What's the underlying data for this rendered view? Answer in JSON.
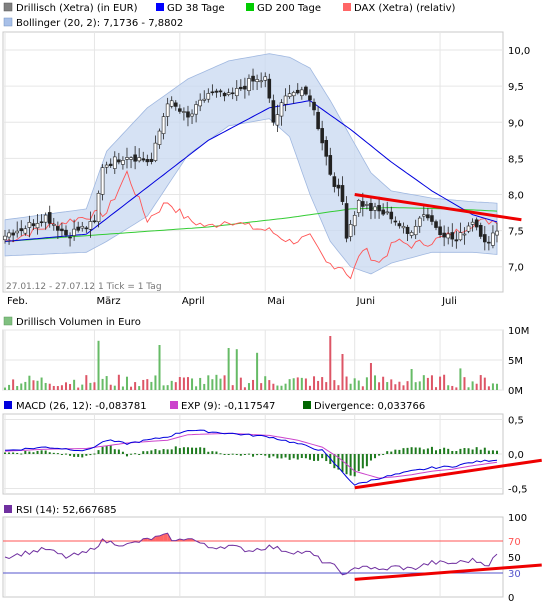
{
  "chart_data": [
    {
      "type": "candlestick",
      "legend": [
        {
          "label": "Drillisch (Xetra) (in EUR)",
          "color": "#808080"
        },
        {
          "label": "GD 38 Tage",
          "color": "#0000ff"
        },
        {
          "label": "GD 200 Tage",
          "color": "#00cc00"
        },
        {
          "label": "DAX (Xetra) (relativ)",
          "color": "#ff6666"
        },
        {
          "label": "Bollinger (20, 2): 7,1736 - 7,8802",
          "color": "#a8c0e8"
        }
      ],
      "y_ticks": [
        "10,0",
        "9,5",
        "9,0",
        "8,5",
        "8,0",
        "7,5",
        "7,0"
      ],
      "y_tick_values": [
        10.0,
        9.5,
        9.0,
        8.5,
        8.0,
        7.5,
        7.0
      ],
      "ylim": [
        6.65,
        10.25
      ],
      "x_ticks": [
        "Feb.",
        "März",
        "April",
        "Mai",
        "Juni",
        "Juli"
      ],
      "period_note": "27.01.12 - 27.07.12   1 Tick = 1 Tag",
      "price_anchors": [
        [
          0,
          7.45
        ],
        [
          5,
          7.55
        ],
        [
          10,
          7.7
        ],
        [
          15,
          7.45
        ],
        [
          20,
          7.55
        ],
        [
          22,
          7.6
        ],
        [
          24,
          8.4
        ],
        [
          30,
          8.55
        ],
        [
          36,
          8.45
        ],
        [
          40,
          9.3
        ],
        [
          45,
          9.05
        ],
        [
          50,
          9.4
        ],
        [
          55,
          9.35
        ],
        [
          60,
          9.55
        ],
        [
          64,
          9.6
        ],
        [
          66,
          9.0
        ],
        [
          70,
          9.45
        ],
        [
          75,
          9.35
        ],
        [
          78,
          8.75
        ],
        [
          80,
          8.3
        ],
        [
          83,
          7.9
        ],
        [
          84,
          7.45
        ],
        [
          87,
          7.9
        ],
        [
          90,
          7.8
        ],
        [
          95,
          7.7
        ],
        [
          99,
          7.45
        ],
        [
          103,
          7.75
        ],
        [
          107,
          7.5
        ],
        [
          111,
          7.35
        ],
        [
          115,
          7.65
        ],
        [
          119,
          7.3
        ],
        [
          121,
          7.55
        ]
      ],
      "gd38_anchors": [
        [
          0,
          7.35
        ],
        [
          20,
          7.45
        ],
        [
          35,
          8.1
        ],
        [
          50,
          8.75
        ],
        [
          65,
          9.2
        ],
        [
          75,
          9.3
        ],
        [
          85,
          8.9
        ],
        [
          95,
          8.45
        ],
        [
          105,
          8.05
        ],
        [
          115,
          7.72
        ],
        [
          121,
          7.62
        ]
      ],
      "gd200_anchors": [
        [
          0,
          7.35
        ],
        [
          25,
          7.45
        ],
        [
          50,
          7.55
        ],
        [
          70,
          7.68
        ],
        [
          85,
          7.8
        ],
        [
          95,
          7.82
        ],
        [
          110,
          7.8
        ],
        [
          121,
          7.77
        ]
      ],
      "dax_anchors": [
        [
          0,
          7.35
        ],
        [
          10,
          7.55
        ],
        [
          20,
          7.7
        ],
        [
          25,
          7.75
        ],
        [
          30,
          8.3
        ],
        [
          35,
          7.65
        ],
        [
          40,
          7.9
        ],
        [
          45,
          7.65
        ],
        [
          50,
          7.55
        ],
        [
          55,
          7.65
        ],
        [
          60,
          7.55
        ],
        [
          65,
          7.5
        ],
        [
          70,
          7.35
        ],
        [
          75,
          7.4
        ],
        [
          79,
          7.05
        ],
        [
          83,
          7.0
        ],
        [
          85,
          6.85
        ],
        [
          88,
          7.25
        ],
        [
          92,
          7.05
        ],
        [
          96,
          7.35
        ],
        [
          100,
          7.3
        ],
        [
          105,
          7.35
        ],
        [
          110,
          7.45
        ],
        [
          115,
          7.6
        ],
        [
          121,
          7.65
        ]
      ],
      "boll_upper_anchors": [
        [
          0,
          7.65
        ],
        [
          20,
          7.8
        ],
        [
          25,
          8.6
        ],
        [
          35,
          9.2
        ],
        [
          45,
          9.6
        ],
        [
          55,
          9.85
        ],
        [
          65,
          9.95
        ],
        [
          70,
          9.9
        ],
        [
          75,
          9.75
        ],
        [
          80,
          9.3
        ],
        [
          85,
          8.8
        ],
        [
          90,
          8.3
        ],
        [
          95,
          8.05
        ],
        [
          105,
          7.95
        ],
        [
          115,
          7.9
        ],
        [
          121,
          7.88
        ]
      ],
      "boll_lower_anchors": [
        [
          0,
          7.15
        ],
        [
          20,
          7.2
        ],
        [
          25,
          7.35
        ],
        [
          35,
          7.7
        ],
        [
          45,
          8.55
        ],
        [
          55,
          8.95
        ],
        [
          65,
          9.05
        ],
        [
          70,
          8.8
        ],
        [
          75,
          8.0
        ],
        [
          80,
          7.35
        ],
        [
          85,
          7.0
        ],
        [
          90,
          6.9
        ],
        [
          95,
          7.05
        ],
        [
          105,
          7.2
        ],
        [
          115,
          7.2
        ],
        [
          121,
          7.17
        ]
      ],
      "trendline": {
        "from": [
          86,
          8.0
        ],
        "to": [
          127,
          7.65
        ],
        "color": "#ff0000"
      }
    },
    {
      "type": "bar",
      "legend": [
        {
          "label": "Drillisch Volumen in Euro",
          "color": "#80c080"
        }
      ],
      "y_ticks": [
        "10M",
        "5M",
        "0M"
      ],
      "y_tick_values": [
        10,
        5,
        0
      ],
      "ylim": [
        0,
        10
      ],
      "unit": "M",
      "up_color": "#66bb66",
      "down_color": "#dd5566",
      "peaks": [
        [
          23,
          8.2
        ],
        [
          38,
          7.5
        ],
        [
          55,
          7.0
        ],
        [
          57,
          6.8
        ],
        [
          62,
          6.2
        ],
        [
          80,
          9.0
        ],
        [
          83,
          6.0
        ],
        [
          90,
          4.5
        ],
        [
          100,
          3.5
        ],
        [
          112,
          3.6
        ]
      ]
    },
    {
      "type": "line",
      "legend": [
        {
          "label": "MACD (26, 12): -0,083781",
          "color": "#0000dd"
        },
        {
          "label": "EXP (9): -0,117547",
          "color": "#cc44cc"
        },
        {
          "label": "Divergence: 0,033766",
          "color": "#006600"
        }
      ],
      "y_ticks": [
        "0,5",
        "0,0",
        "-0,5"
      ],
      "y_tick_values": [
        0.5,
        0.0,
        -0.5
      ],
      "ylim": [
        -0.58,
        0.58
      ],
      "macd_anchors": [
        [
          0,
          0.05
        ],
        [
          10,
          0.1
        ],
        [
          20,
          0.05
        ],
        [
          25,
          0.2
        ],
        [
          30,
          0.15
        ],
        [
          40,
          0.25
        ],
        [
          45,
          0.35
        ],
        [
          55,
          0.3
        ],
        [
          65,
          0.25
        ],
        [
          72,
          0.15
        ],
        [
          78,
          0.05
        ],
        [
          82,
          -0.2
        ],
        [
          86,
          -0.45
        ],
        [
          92,
          -0.35
        ],
        [
          96,
          -0.3
        ],
        [
          100,
          -0.25
        ],
        [
          105,
          -0.2
        ],
        [
          110,
          -0.18
        ],
        [
          115,
          -0.12
        ],
        [
          121,
          -0.08
        ]
      ],
      "exp_anchors": [
        [
          0,
          0.04
        ],
        [
          10,
          0.07
        ],
        [
          20,
          0.08
        ],
        [
          25,
          0.12
        ],
        [
          30,
          0.16
        ],
        [
          40,
          0.2
        ],
        [
          45,
          0.28
        ],
        [
          55,
          0.3
        ],
        [
          65,
          0.27
        ],
        [
          72,
          0.2
        ],
        [
          78,
          0.1
        ],
        [
          82,
          -0.05
        ],
        [
          86,
          -0.25
        ],
        [
          92,
          -0.35
        ],
        [
          96,
          -0.33
        ],
        [
          100,
          -0.3
        ],
        [
          105,
          -0.25
        ],
        [
          110,
          -0.22
        ],
        [
          115,
          -0.17
        ],
        [
          121,
          -0.12
        ]
      ],
      "trendline": {
        "from": [
          86,
          -0.49
        ],
        "to": [
          132,
          -0.09
        ],
        "color": "#ff0000"
      }
    },
    {
      "type": "line",
      "legend": [
        {
          "label": "RSI (14): 52,667685",
          "color": "#7030a0"
        }
      ],
      "y_ticks": [
        "100",
        "70",
        "50",
        "30",
        "0"
      ],
      "y_tick_values": [
        100,
        70,
        50,
        30,
        0
      ],
      "ylim": [
        0,
        100
      ],
      "overbought": 70,
      "oversold": 30,
      "rsi_anchors": [
        [
          0,
          50
        ],
        [
          5,
          55
        ],
        [
          10,
          60
        ],
        [
          15,
          50
        ],
        [
          20,
          55
        ],
        [
          24,
          70
        ],
        [
          30,
          65
        ],
        [
          35,
          72
        ],
        [
          40,
          77
        ],
        [
          42,
          69
        ],
        [
          45,
          75
        ],
        [
          50,
          62
        ],
        [
          55,
          64
        ],
        [
          60,
          58
        ],
        [
          65,
          63
        ],
        [
          70,
          57
        ],
        [
          75,
          55
        ],
        [
          78,
          45
        ],
        [
          81,
          38
        ],
        [
          84,
          27
        ],
        [
          86,
          35
        ],
        [
          88,
          40
        ],
        [
          92,
          33
        ],
        [
          96,
          38
        ],
        [
          100,
          35
        ],
        [
          105,
          43
        ],
        [
          110,
          42
        ],
        [
          115,
          46
        ],
        [
          119,
          41
        ],
        [
          121,
          53
        ]
      ],
      "trendline": {
        "from": [
          86,
          22
        ],
        "to": [
          132,
          40
        ],
        "color": "#ff0000"
      }
    }
  ]
}
